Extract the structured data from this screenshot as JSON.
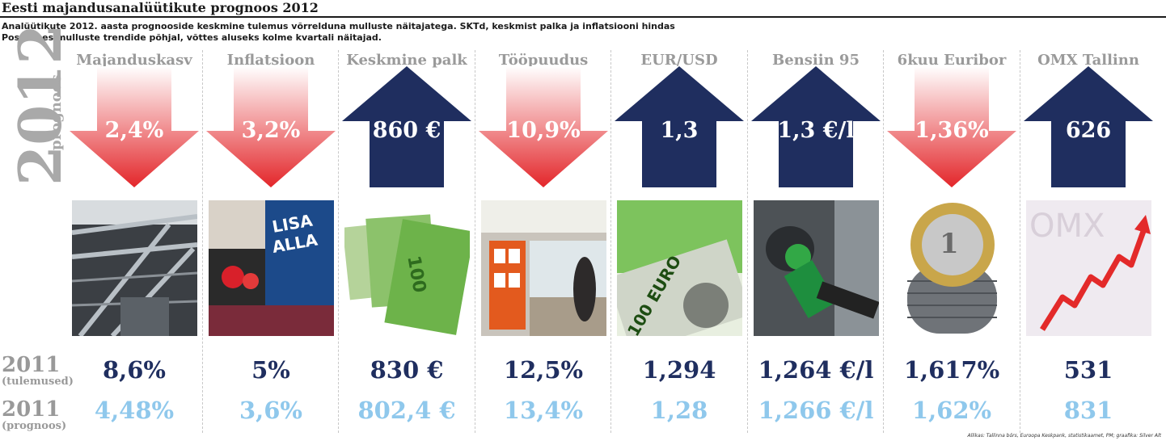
{
  "title": "Eesti majandusanalüütikute prognoos 2012",
  "subtitle": "Analüütikute 2012. aasta prognooside keskmine tulemus võrrelduna mulluste näitajatega. SKTd, keskmist palka ja inflatsiooni hindas Postimees mulluste trendide põhjal, võttes aluseks kolme kvartali näitajad.",
  "side": {
    "year": "2012",
    "prognoos": "prognoos",
    "row1_year": "2011",
    "row1_sub": "(tulemused)",
    "row2_year": "2011",
    "row2_sub": "(prognoos)"
  },
  "colors": {
    "up_arrow": "#1f2e5f",
    "down_arrow": "#e3262a",
    "value_2011": "#1f2e5f",
    "value_2011_forecast": "#8fc8ec",
    "label_grey": "#9a9a9a"
  },
  "chart_data": {
    "type": "table",
    "columns": [
      "2012 prognoos",
      "2011 (tulemused)",
      "2011 (prognoos)"
    ],
    "indicators": [
      {
        "name": "Majanduskasv",
        "direction": "down",
        "forecast_2012": "2,4%",
        "result_2011": "8,6%",
        "forecast_2011": "4,48%",
        "photo": "industrial-pipes"
      },
      {
        "name": "Inflatsioon",
        "direction": "down",
        "forecast_2012": "3,2%",
        "result_2011": "5%",
        "forecast_2011": "3,6%",
        "photo": "sale-store"
      },
      {
        "name": "Keskmine palk",
        "direction": "up",
        "forecast_2012": "860 €",
        "result_2011": "830 €",
        "forecast_2011": "802,4 €",
        "photo": "euro-banknotes"
      },
      {
        "name": "Tööpuudus",
        "direction": "down",
        "forecast_2012": "10,9%",
        "result_2011": "12,5%",
        "forecast_2011": "13,4%",
        "photo": "unemployment-office"
      },
      {
        "name": "EUR/USD",
        "direction": "up",
        "forecast_2012": "1,3",
        "result_2011": "1,294",
        "forecast_2011": "1,28",
        "photo": "euro-dollar-notes"
      },
      {
        "name": "Bensiin 95",
        "direction": "up",
        "forecast_2012": "1,3 €/l",
        "result_2011": "1,264 €/l",
        "forecast_2011": "1,266 €/l",
        "photo": "fuel-nozzle"
      },
      {
        "name": "6kuu Euribor",
        "direction": "down",
        "forecast_2012": "1,36%",
        "result_2011": "1,617%",
        "forecast_2011": "1,62%",
        "photo": "euro-coin-stack"
      },
      {
        "name": "OMX Tallinn",
        "direction": "up",
        "forecast_2012": "626",
        "result_2011": "531",
        "forecast_2011": "831",
        "photo": "omx-rising-chart"
      }
    ]
  },
  "source": "Allikas: Tallinna börs, Euroopa Keskpank, statistikaamet, PM; graafika: Silver Alt"
}
